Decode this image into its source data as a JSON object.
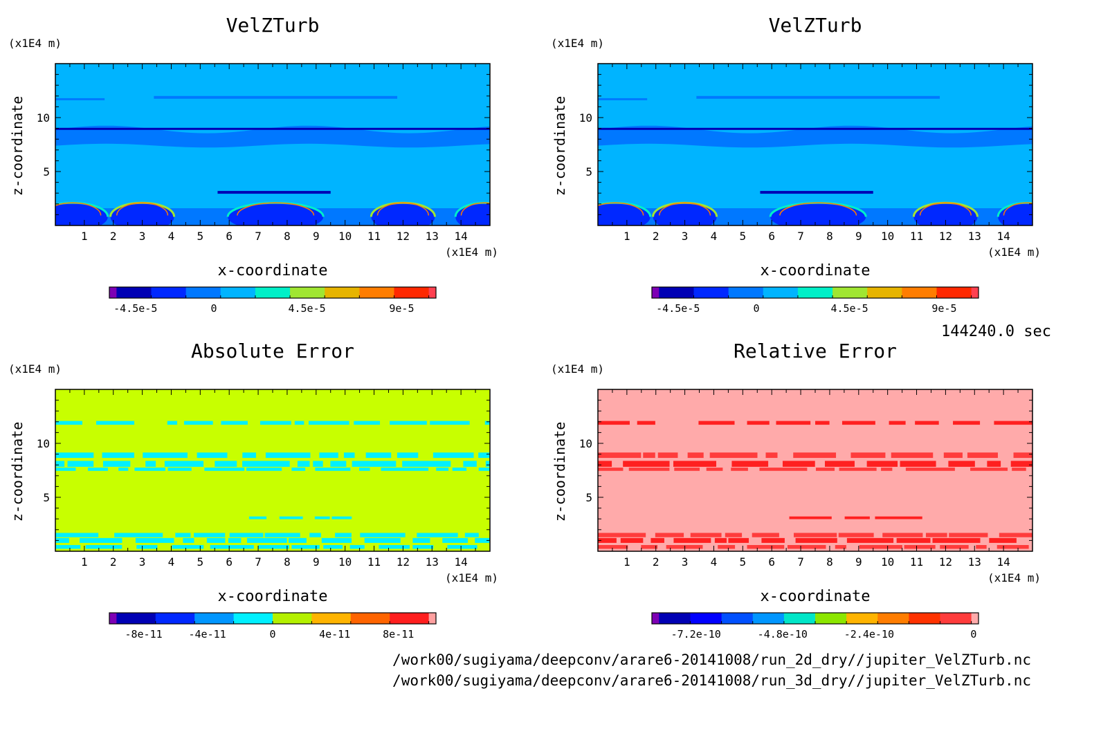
{
  "chart_data": [
    {
      "type": "heatmap",
      "title": "VelZTurb",
      "xlabel": "x-coordinate",
      "ylabel": "z-coordinate",
      "x_unit": "(x1E4 m)",
      "y_unit": "(x1E4 m)",
      "xlim": [
        0,
        15
      ],
      "ylim": [
        0,
        15
      ],
      "x_ticks": [
        "1",
        "2",
        "3",
        "4",
        "5",
        "6",
        "7",
        "8",
        "9",
        "10",
        "11",
        "12",
        "13",
        "14"
      ],
      "y_ticks": [
        "5",
        "10"
      ],
      "background_color": "#00b4ff",
      "colorbar": {
        "colors": [
          "#7d00b4",
          "#0000b4",
          "#0028ff",
          "#0078ff",
          "#00b4ff",
          "#00f0c8",
          "#a0e632",
          "#e6b400",
          "#ff7d00",
          "#ff2800",
          "#ff4050"
        ],
        "tick_labels": [
          "-4.5e-5",
          "0",
          "4.5e-5",
          "9e-5"
        ]
      }
    },
    {
      "type": "heatmap",
      "title": "VelZTurb",
      "xlabel": "x-coordinate",
      "ylabel": "z-coordinate",
      "x_unit": "(x1E4 m)",
      "y_unit": "(x1E4 m)",
      "xlim": [
        0,
        15
      ],
      "ylim": [
        0,
        15
      ],
      "x_ticks": [
        "1",
        "2",
        "3",
        "4",
        "5",
        "6",
        "7",
        "8",
        "9",
        "10",
        "11",
        "12",
        "13",
        "14"
      ],
      "y_ticks": [
        "5",
        "10"
      ],
      "background_color": "#00b4ff",
      "colorbar": {
        "colors": [
          "#7d00b4",
          "#0000b4",
          "#0028ff",
          "#0078ff",
          "#00b4ff",
          "#00f0c8",
          "#a0e632",
          "#e6b400",
          "#ff7d00",
          "#ff2800",
          "#ff4050"
        ],
        "tick_labels": [
          "-4.5e-5",
          "0",
          "4.5e-5",
          "9e-5"
        ]
      }
    },
    {
      "type": "heatmap",
      "title": "Absolute Error",
      "xlabel": "x-coordinate",
      "ylabel": "z-coordinate",
      "x_unit": "(x1E4 m)",
      "y_unit": "(x1E4 m)",
      "xlim": [
        0,
        15
      ],
      "ylim": [
        0,
        15
      ],
      "x_ticks": [
        "1",
        "2",
        "3",
        "4",
        "5",
        "6",
        "7",
        "8",
        "9",
        "10",
        "11",
        "12",
        "13",
        "14"
      ],
      "y_ticks": [
        "5",
        "10"
      ],
      "background_color": "#c8ff00",
      "colorbar": {
        "colors": [
          "#7d00b4",
          "#0000b4",
          "#0028ff",
          "#0096ff",
          "#00f0ff",
          "#b4f000",
          "#ffb400",
          "#ff6400",
          "#ff1e1e",
          "#ffa0a0"
        ],
        "tick_labels": [
          "-8e-11",
          "-4e-11",
          "0",
          "4e-11",
          "8e-11"
        ]
      }
    },
    {
      "type": "heatmap",
      "title": "Relative Error",
      "xlabel": "x-coordinate",
      "ylabel": "z-coordinate",
      "x_unit": "(x1E4 m)",
      "y_unit": "(x1E4 m)",
      "xlim": [
        0,
        15
      ],
      "ylim": [
        0,
        15
      ],
      "x_ticks": [
        "1",
        "2",
        "3",
        "4",
        "5",
        "6",
        "7",
        "8",
        "9",
        "10",
        "11",
        "12",
        "13",
        "14"
      ],
      "y_ticks": [
        "5",
        "10"
      ],
      "background_color": "#ffaaaa",
      "colorbar": {
        "colors": [
          "#7d00b4",
          "#0000b4",
          "#0000ff",
          "#0050ff",
          "#0096ff",
          "#00e6c8",
          "#8ce600",
          "#ffb400",
          "#ff7d00",
          "#ff3200",
          "#ff3c3c",
          "#ffaaaa"
        ],
        "tick_labels": [
          "-7.2e-10",
          "-4.8e-10",
          "-2.4e-10",
          "0"
        ]
      }
    }
  ],
  "time_label": "144240.0 sec",
  "files": [
    "/work00/sugiyama/deepconv/arare6-20141008/run_2d_dry//jupiter_VelZTurb.nc",
    "/work00/sugiyama/deepconv/arare6-20141008/run_3d_dry//jupiter_VelZTurb.nc"
  ]
}
